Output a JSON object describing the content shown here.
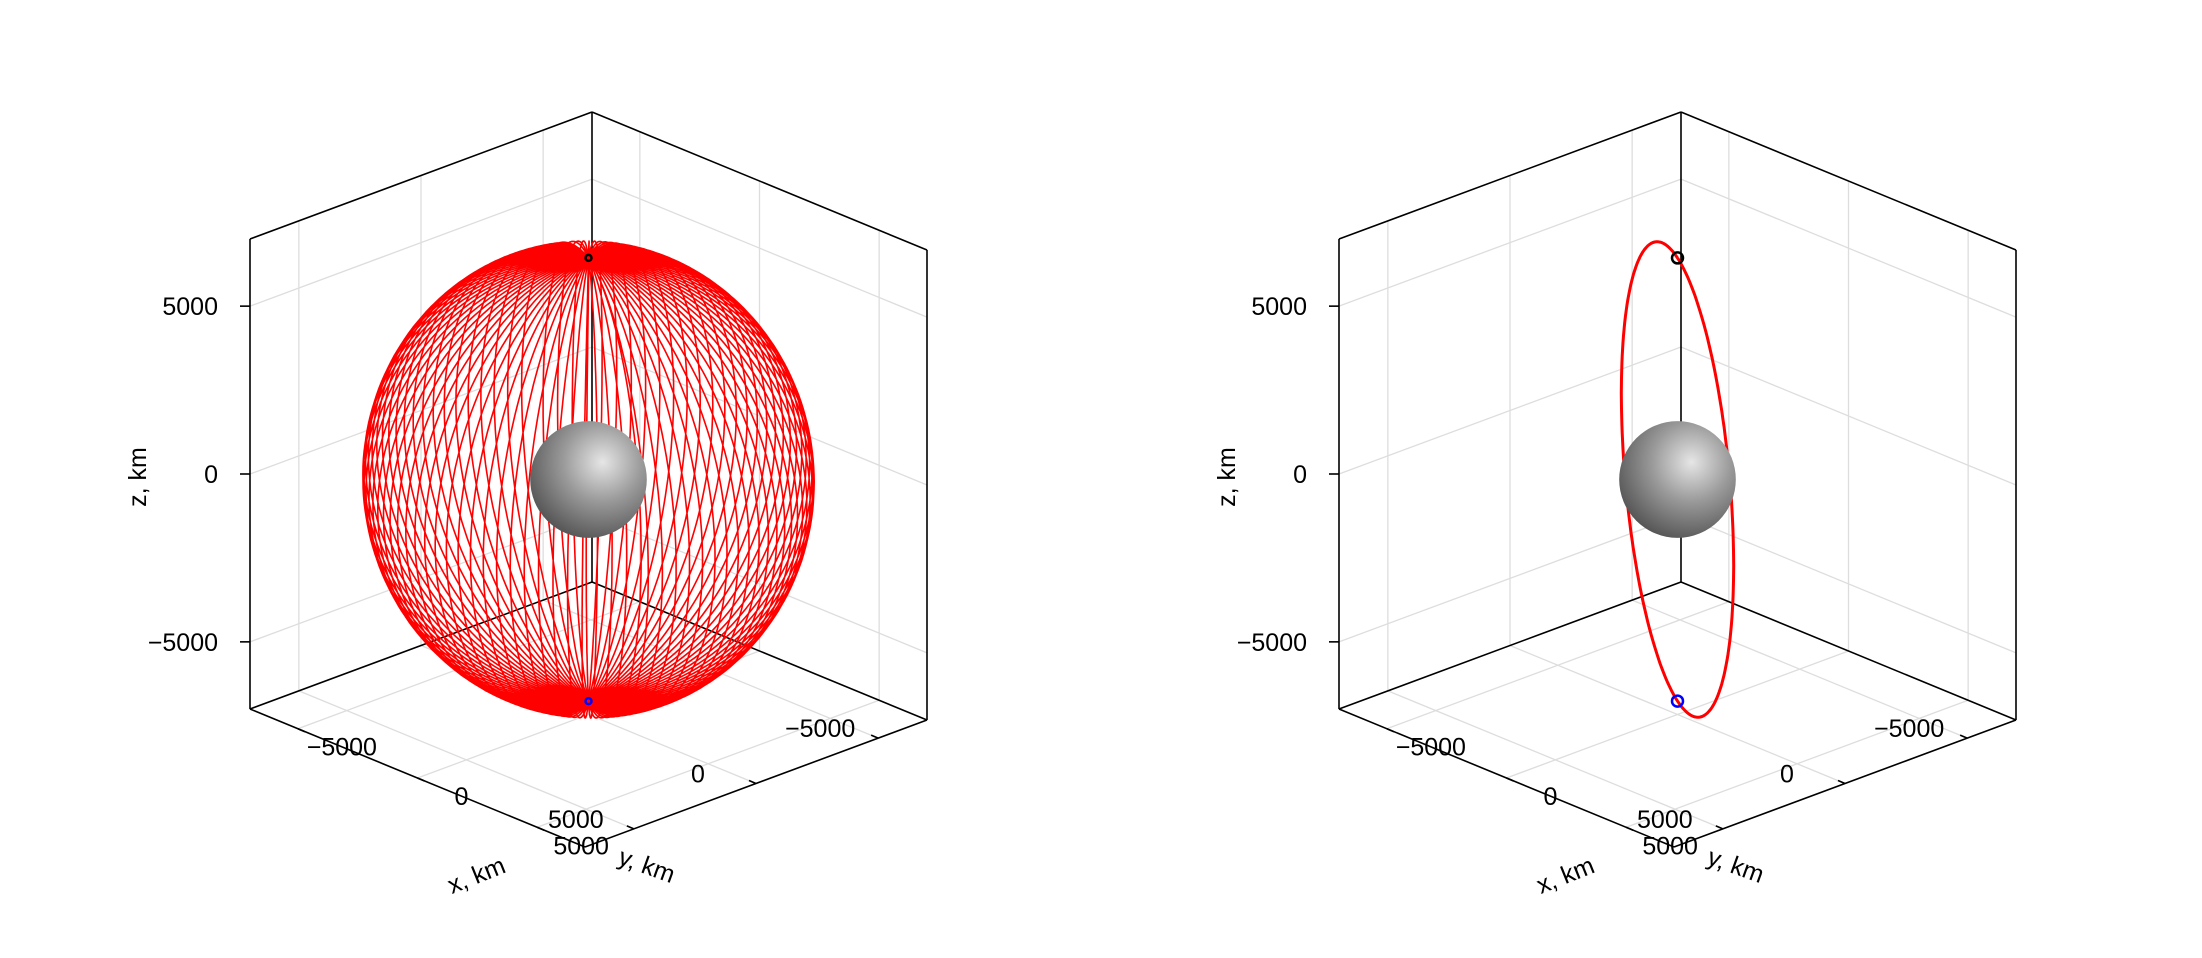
{
  "chart_data": [
    {
      "type": "line",
      "projection": "3d",
      "xlabel": "x, km",
      "ylabel": "y, km",
      "zlabel": "z, km",
      "xticks": [
        "−5000",
        "0",
        "5000"
      ],
      "yticks": [
        "−5000",
        "0",
        "5000"
      ],
      "zticks": [
        "−5000",
        "0",
        "5000"
      ],
      "xlim": [
        -7000,
        7000
      ],
      "ylim": [
        -7000,
        7000
      ],
      "zlim": [
        -7000,
        7000
      ],
      "grid": true,
      "trajectory_color": "#ff0000",
      "body": {
        "shape": "sphere",
        "radius_km": 1737,
        "color": "#9a9a9a"
      },
      "orbit": {
        "radius_km": 6600,
        "revolutions": 48,
        "node_precession_deg_per_rev": 3.75
      },
      "markers": [
        {
          "point": "start",
          "x": 0,
          "y": 0,
          "z": 6600,
          "color": "#000000"
        },
        {
          "point": "end",
          "x": 0,
          "y": 0,
          "z": -6600,
          "color": "#0000ff"
        }
      ]
    },
    {
      "type": "line",
      "projection": "3d",
      "xlabel": "x, km",
      "ylabel": "y, km",
      "zlabel": "z, km",
      "xticks": [
        "−5000",
        "0",
        "5000"
      ],
      "yticks": [
        "−5000",
        "0",
        "5000"
      ],
      "zticks": [
        "−5000",
        "0",
        "5000"
      ],
      "xlim": [
        -7000,
        7000
      ],
      "ylim": [
        -7000,
        7000
      ],
      "zlim": [
        -7000,
        7000
      ],
      "grid": true,
      "trajectory_color": "#ff0000",
      "body": {
        "shape": "sphere",
        "radius_km": 1737,
        "color": "#9a9a9a"
      },
      "orbit": {
        "radius_km": 6600,
        "revolutions": 1,
        "node_precession_deg_per_rev": 0
      },
      "markers": [
        {
          "point": "start",
          "x": 0,
          "y": 0,
          "z": 6600,
          "color": "#000000"
        },
        {
          "point": "end",
          "x": 0,
          "y": 0,
          "z": -6600,
          "color": "#0000ff"
        }
      ]
    }
  ]
}
